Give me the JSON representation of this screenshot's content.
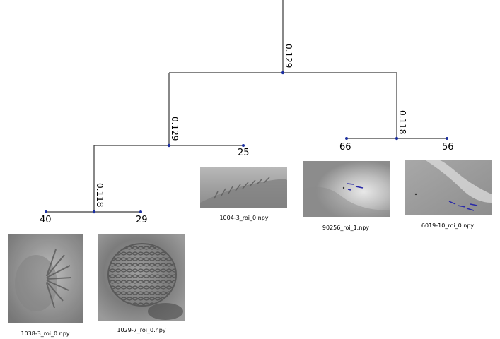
{
  "tree": {
    "line_color": "#3a3a3a",
    "node_color": "#1c2fa0",
    "splits": [
      {
        "distance": "0.129"
      },
      {
        "distance": "0.129"
      },
      {
        "distance": "0.118"
      },
      {
        "distance": "0.118"
      }
    ],
    "leaves": [
      {
        "count": "40",
        "file": "1038-3_roi_0.npy",
        "texture": "radial-cells"
      },
      {
        "count": "29",
        "file": "1029-7_roi_0.npy",
        "texture": "mesh-cells"
      },
      {
        "count": "25",
        "file": "1004-3_roi_0.npy",
        "texture": "ridge-edge"
      },
      {
        "count": "66",
        "file": "90256_roi_1.npy",
        "texture": "bright-blob-with-marks"
      },
      {
        "count": "56",
        "file": "6019-10_roi_0.npy",
        "texture": "diagonal-band-with-marks"
      }
    ],
    "mark_color": "#2a2aa8"
  }
}
